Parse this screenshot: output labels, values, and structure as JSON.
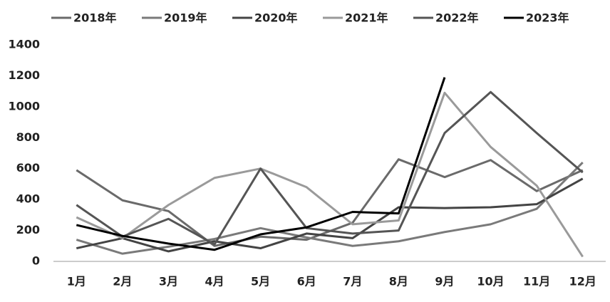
{
  "chart_data": {
    "type": "line",
    "categories": [
      "1月",
      "2月",
      "3月",
      "4月",
      "5月",
      "6月",
      "7月",
      "8月",
      "9月",
      "10月",
      "11月",
      "12月"
    ],
    "series": [
      {
        "name": "2018年",
        "color": "#6a6a6a",
        "values": [
          590,
          395,
          325,
          100,
          160,
          140,
          250,
          660,
          545,
          655,
          455,
          590
        ]
      },
      {
        "name": "2019年",
        "color": "#7a7a7a",
        "values": [
          140,
          50,
          95,
          145,
          215,
          155,
          100,
          130,
          190,
          240,
          340,
          640
        ]
      },
      {
        "name": "2020年",
        "color": "#444444",
        "values": [
          85,
          150,
          65,
          130,
          85,
          180,
          150,
          350,
          345,
          350,
          370,
          535
        ]
      },
      {
        "name": "2021年",
        "color": "#9a9a9a",
        "values": [
          285,
          150,
          365,
          540,
          600,
          480,
          240,
          265,
          1090,
          740,
          490,
          30
        ]
      },
      {
        "name": "2022年",
        "color": "#555555",
        "values": [
          365,
          160,
          275,
          110,
          600,
          215,
          180,
          200,
          830,
          1095,
          830,
          575
        ]
      },
      {
        "name": "2023年",
        "color": "#000000",
        "values": [
          235,
          165,
          115,
          75,
          175,
          220,
          320,
          310,
          1190,
          null,
          null,
          null
        ]
      }
    ],
    "ylim": [
      0,
      1400
    ],
    "yticks": [
      0,
      200,
      400,
      600,
      800,
      1000,
      1200,
      1400
    ],
    "grid": false
  }
}
